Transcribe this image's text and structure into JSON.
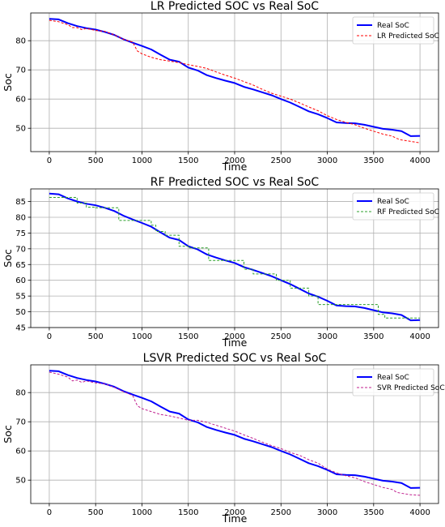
{
  "chart_data": [
    {
      "type": "line",
      "title": "LR Predicted SOC vs Real SoC",
      "xlabel": "Time",
      "ylabel": "Soc",
      "xlim": [
        -200,
        4200
      ],
      "ylim": [
        42,
        89.5
      ],
      "xticks": [
        0,
        500,
        1000,
        1500,
        2000,
        2500,
        3000,
        3500,
        4000
      ],
      "yticks": [
        50,
        60,
        70,
        80
      ],
      "grid": true,
      "legend_position": "top-right",
      "series": [
        {
          "name": "Real SoC",
          "color": "#0000ff",
          "style": "solid",
          "x": [
            0,
            100,
            200,
            300,
            400,
            500,
            600,
            700,
            800,
            900,
            1000,
            1100,
            1200,
            1300,
            1400,
            1500,
            1600,
            1700,
            1800,
            1900,
            2000,
            2100,
            2200,
            2300,
            2400,
            2500,
            2600,
            2700,
            2800,
            2900,
            3000,
            3100,
            3200,
            3300,
            3400,
            3500,
            3600,
            3700,
            3800,
            3900,
            4000
          ],
          "y": [
            87.5,
            87.3,
            86.0,
            85.0,
            84.3,
            83.8,
            83.0,
            82.0,
            80.5,
            79.3,
            78.2,
            77.0,
            75.2,
            73.5,
            72.8,
            70.8,
            69.8,
            68.2,
            67.2,
            66.3,
            65.5,
            64.2,
            63.3,
            62.3,
            61.3,
            60.0,
            58.8,
            57.3,
            55.8,
            54.8,
            53.5,
            52.0,
            51.8,
            51.7,
            51.2,
            50.5,
            49.8,
            49.5,
            49.0,
            47.3,
            47.4
          ]
        },
        {
          "name": "LR Predicted SoC",
          "color": "#ff0000",
          "style": "dashed",
          "x": [
            0,
            100,
            200,
            250,
            300,
            350,
            400,
            500,
            600,
            700,
            800,
            900,
            950,
            1000,
            1100,
            1200,
            1300,
            1400,
            1500,
            1600,
            1700,
            1800,
            1900,
            2000,
            2100,
            2200,
            2300,
            2400,
            2500,
            2600,
            2700,
            2800,
            2900,
            3000,
            3100,
            3200,
            3300,
            3400,
            3500,
            3600,
            3700,
            3750,
            3800,
            3900,
            4000
          ],
          "y": [
            87.0,
            86.5,
            85.5,
            84.5,
            84.5,
            83.8,
            84.2,
            83.5,
            83.2,
            82.0,
            80.5,
            79.5,
            76.5,
            75.5,
            74.3,
            73.5,
            73.0,
            72.5,
            71.8,
            71.2,
            70.5,
            69.3,
            68.2,
            67.2,
            66.0,
            64.8,
            63.3,
            62.0,
            61.0,
            60.0,
            58.7,
            57.3,
            56.0,
            54.3,
            53.0,
            52.0,
            51.2,
            50.0,
            49.0,
            48.0,
            47.3,
            46.5,
            46.0,
            45.5,
            45.0
          ]
        }
      ]
    },
    {
      "type": "line",
      "title": "RF Predicted SOC vs Real SoC",
      "xlabel": "Time",
      "ylabel": "Soc",
      "xlim": [
        -200,
        4200
      ],
      "ylim": [
        45,
        89
      ],
      "xticks": [
        0,
        500,
        1000,
        1500,
        2000,
        2500,
        3000,
        3500,
        4000
      ],
      "yticks": [
        45,
        50,
        55,
        60,
        65,
        70,
        75,
        80,
        85
      ],
      "grid": true,
      "legend_position": "top-right",
      "series": [
        {
          "name": "Real SoC",
          "color": "#0000ff",
          "style": "solid",
          "x": [
            0,
            100,
            200,
            300,
            400,
            500,
            600,
            700,
            800,
            900,
            1000,
            1100,
            1200,
            1300,
            1400,
            1500,
            1600,
            1700,
            1800,
            1900,
            2000,
            2100,
            2200,
            2300,
            2400,
            2500,
            2600,
            2700,
            2800,
            2900,
            3000,
            3100,
            3200,
            3300,
            3400,
            3500,
            3600,
            3700,
            3800,
            3900,
            4000
          ],
          "y": [
            87.5,
            87.3,
            86.0,
            85.0,
            84.3,
            83.8,
            83.0,
            82.0,
            80.5,
            79.3,
            78.2,
            77.0,
            75.2,
            73.5,
            72.8,
            70.8,
            69.8,
            68.2,
            67.2,
            66.3,
            65.5,
            64.2,
            63.3,
            62.3,
            61.3,
            60.0,
            58.8,
            57.3,
            55.8,
            54.8,
            53.5,
            52.0,
            51.8,
            51.7,
            51.2,
            50.5,
            49.8,
            49.5,
            49.0,
            47.3,
            47.4
          ]
        },
        {
          "name": "RF Predicted SoC",
          "color": "#2ca02c",
          "style": "dashed",
          "x": [
            0,
            300,
            300,
            400,
            400,
            500,
            500,
            750,
            750,
            1100,
            1100,
            1150,
            1150,
            1250,
            1250,
            1400,
            1400,
            1500,
            1500,
            1720,
            1720,
            2100,
            2100,
            2200,
            2200,
            2450,
            2450,
            2600,
            2600,
            2800,
            2800,
            2900,
            2900,
            3150,
            3150,
            3550,
            3550,
            3620,
            3620,
            4000
          ],
          "y": [
            86.3,
            86.3,
            84.5,
            84.5,
            83.2,
            83.2,
            83.0,
            83.0,
            79.0,
            79.0,
            77.5,
            77.5,
            75.5,
            75.5,
            74.3,
            74.3,
            70.8,
            70.8,
            70.3,
            70.3,
            66.3,
            66.3,
            63.5,
            63.5,
            62.0,
            62.0,
            60.0,
            60.0,
            57.5,
            57.5,
            55.0,
            55.0,
            52.3,
            52.3,
            52.3,
            52.3,
            49.2,
            49.2,
            48.0,
            48.0
          ]
        }
      ]
    },
    {
      "type": "line",
      "title": "LSVR Predicted SOC vs Real SoC",
      "xlabel": "Time",
      "ylabel": "Soc",
      "xlim": [
        -200,
        4200
      ],
      "ylim": [
        42,
        89.5
      ],
      "xticks": [
        0,
        500,
        1000,
        1500,
        2000,
        2500,
        3000,
        3500,
        4000
      ],
      "yticks": [
        50,
        60,
        70,
        80
      ],
      "grid": true,
      "legend_position": "top-right",
      "series": [
        {
          "name": "Real SoC",
          "color": "#0000ff",
          "style": "solid",
          "x": [
            0,
            100,
            200,
            300,
            400,
            500,
            600,
            700,
            800,
            900,
            1000,
            1100,
            1200,
            1300,
            1400,
            1500,
            1600,
            1700,
            1800,
            1900,
            2000,
            2100,
            2200,
            2300,
            2400,
            2500,
            2600,
            2700,
            2800,
            2900,
            3000,
            3100,
            3200,
            3300,
            3400,
            3500,
            3600,
            3700,
            3800,
            3900,
            4000
          ],
          "y": [
            87.5,
            87.3,
            86.0,
            85.0,
            84.3,
            83.8,
            83.0,
            82.0,
            80.5,
            79.3,
            78.2,
            77.0,
            75.2,
            73.5,
            72.8,
            70.8,
            69.8,
            68.2,
            67.2,
            66.3,
            65.5,
            64.2,
            63.3,
            62.3,
            61.3,
            60.0,
            58.8,
            57.3,
            55.8,
            54.8,
            53.5,
            52.0,
            51.8,
            51.7,
            51.2,
            50.5,
            49.8,
            49.5,
            49.0,
            47.3,
            47.4
          ]
        },
        {
          "name": "SVR Predicted SoC",
          "color": "#c0208f",
          "style": "dashed",
          "x": [
            0,
            100,
            200,
            250,
            300,
            350,
            400,
            500,
            600,
            700,
            800,
            900,
            950,
            1000,
            1100,
            1200,
            1300,
            1400,
            1500,
            1600,
            1700,
            1800,
            1900,
            2000,
            2100,
            2200,
            2300,
            2400,
            2500,
            2600,
            2700,
            2800,
            2900,
            3000,
            3100,
            3200,
            3300,
            3400,
            3500,
            3600,
            3700,
            3750,
            3800,
            3900,
            4000
          ],
          "y": [
            87.0,
            86.3,
            85.3,
            84.0,
            84.3,
            83.5,
            84.0,
            83.3,
            83.0,
            81.8,
            80.3,
            79.0,
            75.5,
            74.5,
            73.5,
            72.5,
            72.0,
            71.3,
            70.5,
            70.5,
            69.8,
            68.8,
            67.8,
            66.8,
            65.5,
            64.3,
            63.0,
            61.8,
            60.8,
            59.5,
            58.5,
            57.0,
            55.8,
            53.8,
            52.5,
            51.5,
            50.8,
            49.5,
            48.5,
            47.5,
            46.8,
            45.8,
            45.5,
            45.0,
            44.8
          ]
        }
      ]
    }
  ]
}
